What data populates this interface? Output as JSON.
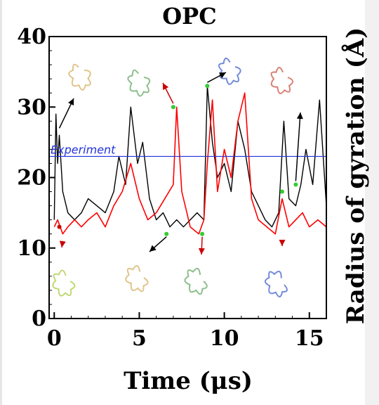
{
  "chart_data": {
    "type": "line",
    "title": "OPC",
    "xlabel": "Time (μs)",
    "ylabel": "Radius of gyration (Å)",
    "xlim": [
      -0.3,
      16
    ],
    "ylim": [
      0,
      40
    ],
    "x_ticks": [
      0,
      5,
      10,
      15
    ],
    "x_tick_labels": [
      "0",
      "5",
      "10",
      "15"
    ],
    "y_ticks": [
      0,
      10,
      20,
      30,
      40
    ],
    "y_tick_labels": [
      "0",
      "10",
      "20",
      "30",
      "40"
    ],
    "grid": false,
    "reference_line": {
      "label": "Experiment",
      "y": 23,
      "color": "#2233dd"
    },
    "series": [
      {
        "color": "#000000",
        "x": [
          0,
          0.1,
          0.2,
          0.3,
          0.5,
          0.8,
          1.2,
          1.6,
          2.0,
          2.5,
          3.0,
          3.5,
          3.8,
          4.2,
          4.5,
          4.9,
          5.2,
          5.6,
          6.0,
          6.4,
          6.8,
          7.2,
          7.6,
          8.0,
          8.4,
          8.8,
          9.0,
          9.3,
          9.6,
          10.0,
          10.4,
          10.8,
          11.2,
          11.6,
          12.0,
          12.4,
          12.8,
          13.2,
          13.5,
          13.8,
          14.2,
          14.5,
          14.8,
          15.2,
          15.6,
          16.0
        ],
        "y": [
          14,
          29,
          22,
          26,
          18,
          15,
          14,
          15,
          17,
          16,
          15,
          18,
          23,
          19,
          30,
          22,
          25,
          17,
          14,
          15,
          13,
          14,
          13,
          14,
          15,
          14,
          33,
          25,
          20,
          22,
          18,
          28,
          24,
          18,
          16,
          14,
          13,
          15,
          28,
          17,
          16,
          19,
          24,
          19,
          31,
          16
        ]
      },
      {
        "color": "#ff0000",
        "x": [
          0,
          0.2,
          0.5,
          0.8,
          1.2,
          1.6,
          2.0,
          2.5,
          3.0,
          3.5,
          4.0,
          4.5,
          5.0,
          5.5,
          6.0,
          6.5,
          7.0,
          7.2,
          7.5,
          8.0,
          8.5,
          8.8,
          9.0,
          9.3,
          9.6,
          10.0,
          10.4,
          10.8,
          11.2,
          11.6,
          12.0,
          12.5,
          13.0,
          13.4,
          13.8,
          14.2,
          14.6,
          15.0,
          15.5,
          16.0
        ],
        "y": [
          13,
          14,
          12,
          13,
          14,
          13,
          14,
          15,
          13,
          16,
          18,
          22,
          17,
          14,
          15,
          17,
          19,
          30,
          18,
          13,
          12,
          14,
          22,
          31,
          18,
          24,
          20,
          28,
          32,
          17,
          14,
          13,
          12,
          17,
          13,
          14,
          15,
          13,
          14,
          13
        ]
      }
    ],
    "annotations": [
      {
        "kind": "red-dot",
        "x": 0.3,
        "y": 13
      },
      {
        "kind": "green-dot",
        "x": 7.0,
        "y": 30
      },
      {
        "kind": "green-dot",
        "x": 6.6,
        "y": 12
      },
      {
        "kind": "green-dot",
        "x": 9.0,
        "y": 33
      },
      {
        "kind": "green-dot",
        "x": 8.7,
        "y": 12
      },
      {
        "kind": "green-dot",
        "x": 13.4,
        "y": 18
      },
      {
        "kind": "green-dot",
        "x": 14.2,
        "y": 19
      }
    ]
  }
}
